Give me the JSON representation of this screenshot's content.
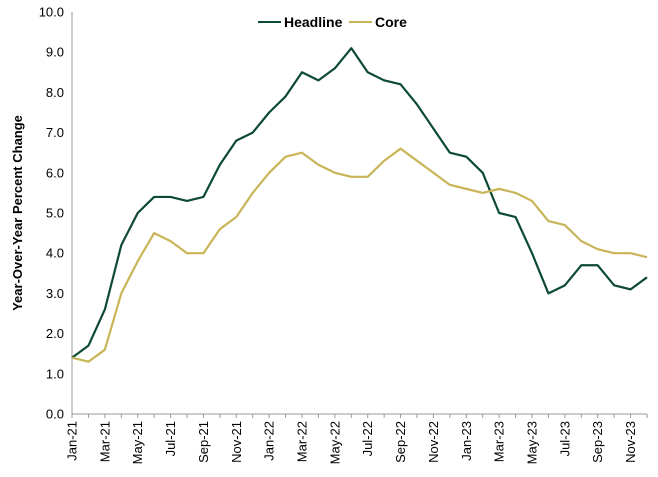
{
  "chart_data": {
    "type": "line",
    "title": "",
    "xlabel": "",
    "ylabel": "Year-Over-Year Percent Change",
    "ylim": [
      0,
      10
    ],
    "yticks": [
      "0.0",
      "1.0",
      "2.0",
      "3.0",
      "4.0",
      "5.0",
      "6.0",
      "7.0",
      "8.0",
      "9.0",
      "10.0"
    ],
    "grid": false,
    "legend_position": "top-center",
    "x": [
      "Jan-21",
      "Feb-21",
      "Mar-21",
      "Apr-21",
      "May-21",
      "Jun-21",
      "Jul-21",
      "Aug-21",
      "Sep-21",
      "Oct-21",
      "Nov-21",
      "Dec-21",
      "Jan-22",
      "Feb-22",
      "Mar-22",
      "Apr-22",
      "May-22",
      "Jun-22",
      "Jul-22",
      "Aug-22",
      "Sep-22",
      "Oct-22",
      "Nov-22",
      "Dec-22",
      "Jan-23",
      "Feb-23",
      "Mar-23",
      "Apr-23",
      "May-23",
      "Jun-23",
      "Jul-23",
      "Aug-23",
      "Sep-23",
      "Oct-23",
      "Nov-23",
      "Dec-23"
    ],
    "xtick_labels": [
      "Jan-21",
      "Mar-21",
      "May-21",
      "Jul-21",
      "Sep-21",
      "Nov-21",
      "Jan-22",
      "Mar-22",
      "May-22",
      "Jul-22",
      "Sep-22",
      "Nov-22",
      "Jan-23",
      "Mar-23",
      "May-23",
      "Jul-23",
      "Sep-23",
      "Nov-23"
    ],
    "series": [
      {
        "name": "Headline",
        "color": "#0d4a33",
        "values": [
          1.4,
          1.7,
          2.6,
          4.2,
          5.0,
          5.4,
          5.4,
          5.3,
          5.4,
          6.2,
          6.8,
          7.0,
          7.5,
          7.9,
          8.5,
          8.3,
          8.6,
          9.1,
          8.5,
          8.3,
          8.2,
          7.7,
          7.1,
          6.5,
          6.4,
          6.0,
          5.0,
          4.9,
          4.0,
          3.0,
          3.2,
          3.7,
          3.7,
          3.2,
          3.1,
          3.4
        ]
      },
      {
        "name": "Core",
        "color": "#c9b458",
        "values": [
          1.4,
          1.3,
          1.6,
          3.0,
          3.8,
          4.5,
          4.3,
          4.0,
          4.0,
          4.6,
          4.9,
          5.5,
          6.0,
          6.4,
          6.5,
          6.2,
          6.0,
          5.9,
          5.9,
          6.3,
          6.6,
          6.3,
          6.0,
          5.7,
          5.6,
          5.5,
          5.6,
          5.5,
          5.3,
          4.8,
          4.7,
          4.3,
          4.1,
          4.0,
          4.0,
          3.9
        ]
      }
    ]
  }
}
